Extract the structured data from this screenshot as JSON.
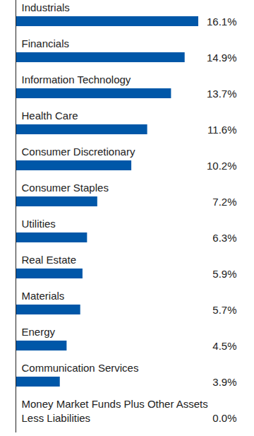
{
  "chart_data": {
    "type": "bar",
    "orientation": "horizontal",
    "categories": [
      "Industrials",
      "Financials",
      "Information Technology",
      "Health Care",
      "Consumer Discretionary",
      "Consumer Staples",
      "Utilities",
      "Real Estate",
      "Materials",
      "Energy",
      "Communication Services",
      "Money Market Funds Plus Other Assets Less Liabilities"
    ],
    "values": [
      16.1,
      14.9,
      13.7,
      11.6,
      10.2,
      7.2,
      6.3,
      5.9,
      5.7,
      4.5,
      3.9,
      0.0
    ],
    "value_labels": [
      "16.1%",
      "14.9%",
      "13.7%",
      "11.6%",
      "10.2%",
      "7.2%",
      "6.3%",
      "5.9%",
      "5.7%",
      "4.5%",
      "3.9%",
      "0.0%"
    ],
    "color": "#0057a8",
    "xlim": [
      0,
      16.1
    ],
    "data_labels": true
  }
}
